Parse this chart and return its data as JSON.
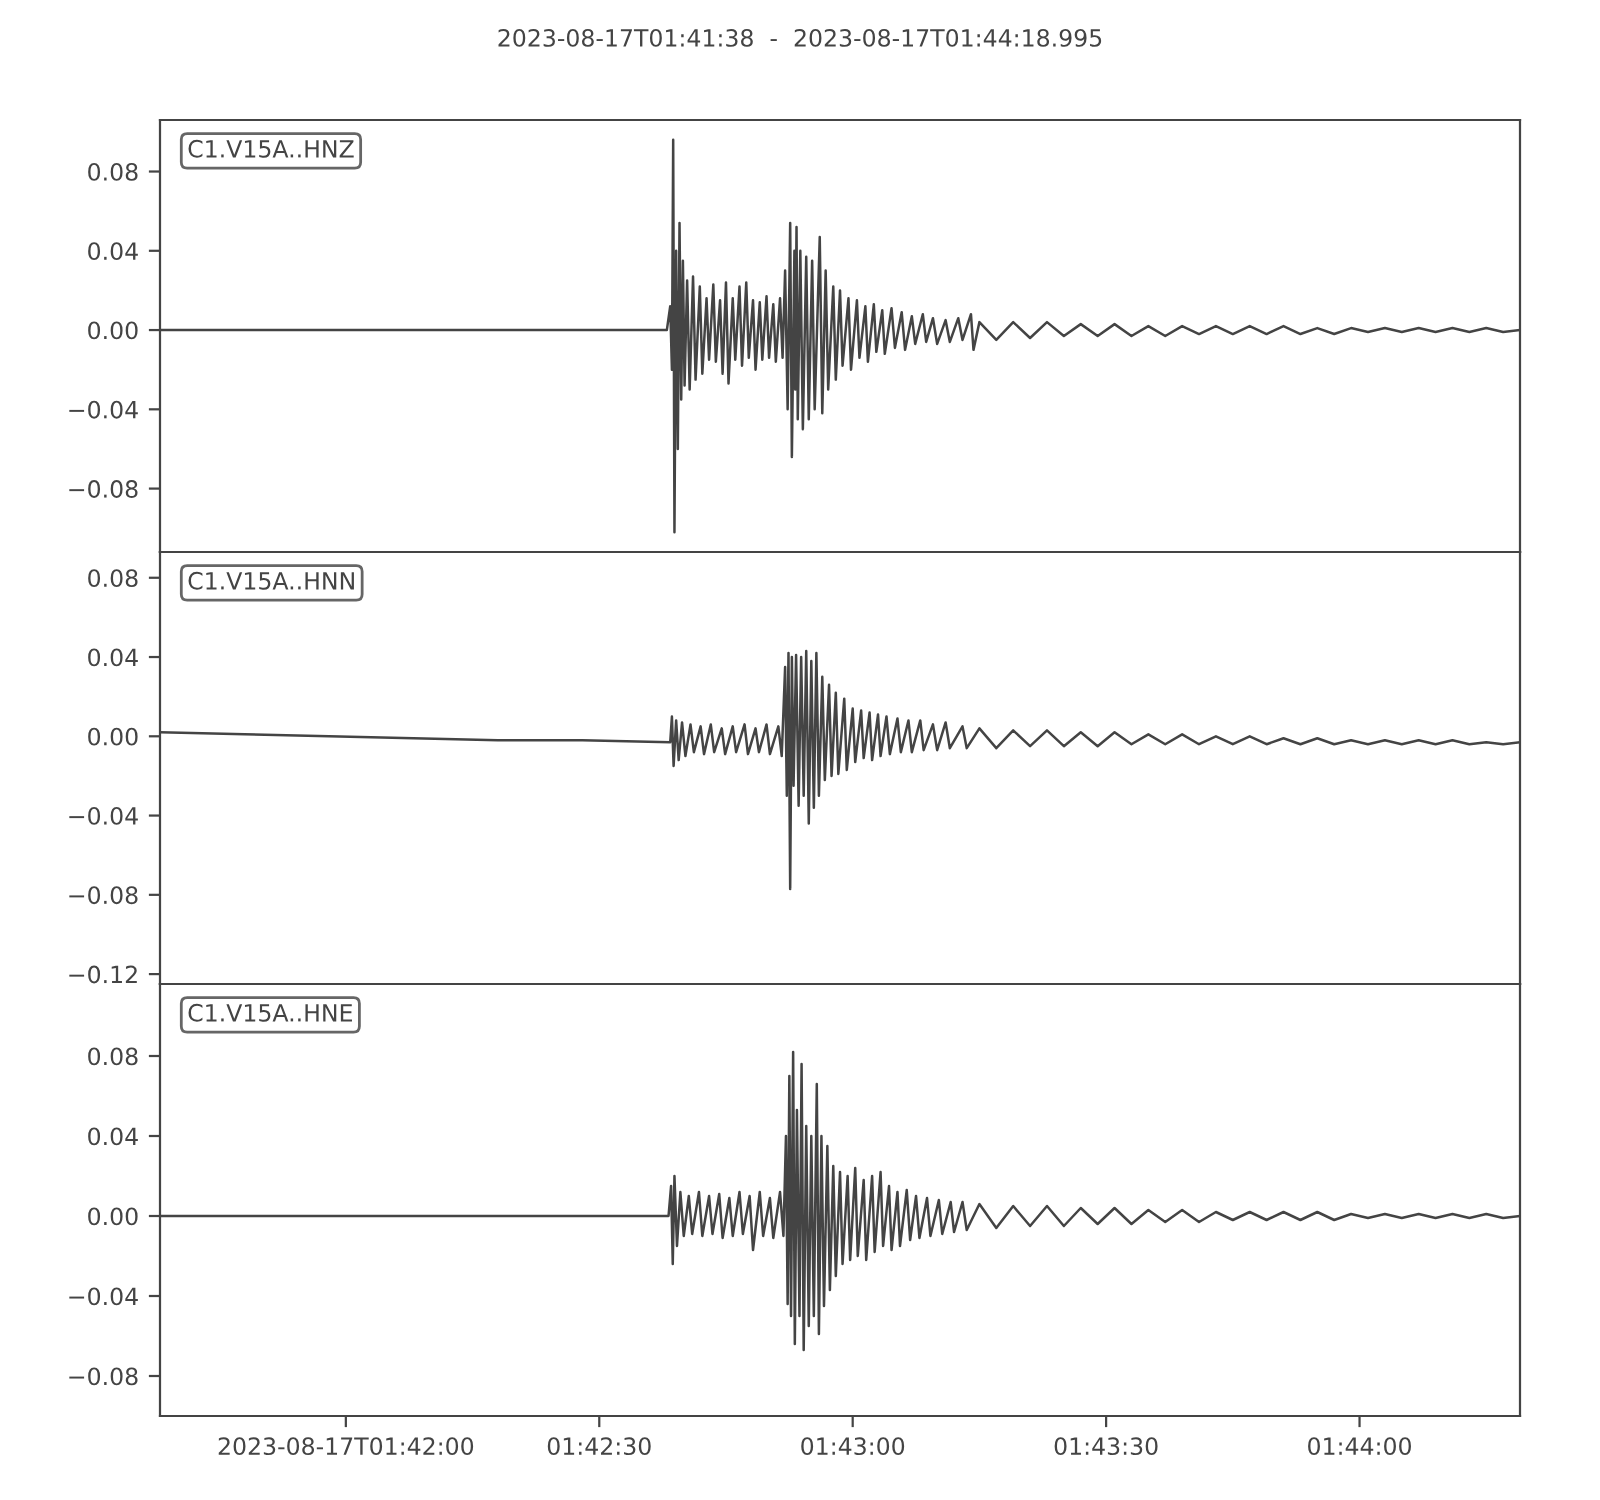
{
  "chart_data": [
    {
      "type": "line",
      "title": "2023-08-17T01:41:38  -  2023-08-17T01:44:18.995",
      "annotations": [
        "C1.V15A..HNZ"
      ],
      "x": [
        "2023-08-17T01:41:38",
        "2023-08-17T01:41:58",
        "2023-08-17T01:42:18",
        "2023-08-17T01:42:38",
        "2023-08-17T01:42:38.4",
        "2023-08-17T01:42:38.6",
        "2023-08-17T01:42:38.75",
        "2023-08-17T01:42:38.9",
        "2023-08-17T01:42:39.1",
        "2023-08-17T01:42:39.3",
        "2023-08-17T01:42:39.5",
        "2023-08-17T01:42:39.7",
        "2023-08-17T01:42:39.9",
        "2023-08-17T01:42:40.1",
        "2023-08-17T01:42:40.4",
        "2023-08-17T01:42:40.7",
        "2023-08-17T01:42:41.1",
        "2023-08-17T01:42:41.4",
        "2023-08-17T01:42:41.9",
        "2023-08-17T01:42:42.2",
        "2023-08-17T01:42:42.7",
        "2023-08-17T01:42:43",
        "2023-08-17T01:42:43.5",
        "2023-08-17T01:42:43.8",
        "2023-08-17T01:42:44.3",
        "2023-08-17T01:42:44.6",
        "2023-08-17T01:42:45",
        "2023-08-17T01:42:45.3",
        "2023-08-17T01:42:45.8",
        "2023-08-17T01:42:46.1",
        "2023-08-17T01:42:46.6",
        "2023-08-17T01:42:46.9",
        "2023-08-17T01:42:47.4",
        "2023-08-17T01:42:47.7",
        "2023-08-17T01:42:48.2",
        "2023-08-17T01:42:48.5",
        "2023-08-17T01:42:49",
        "2023-08-17T01:42:49.3",
        "2023-08-17T01:42:49.8",
        "2023-08-17T01:42:50.1",
        "2023-08-17T01:42:50.6",
        "2023-08-17T01:42:50.9",
        "2023-08-17T01:42:51.4",
        "2023-08-17T01:42:51.7",
        "2023-08-17T01:42:52",
        "2023-08-17T01:42:52.3",
        "2023-08-17T01:42:52.6",
        "2023-08-17T01:42:52.8",
        "2023-08-17T01:42:53.1",
        "2023-08-17T01:42:53.2",
        "2023-08-17T01:42:53.35",
        "2023-08-17T01:42:53.5",
        "2023-08-17T01:42:53.8",
        "2023-08-17T01:42:54.1",
        "2023-08-17T01:42:54.5",
        "2023-08-17T01:42:54.8",
        "2023-08-17T01:42:55.2",
        "2023-08-17T01:42:55.5",
        "2023-08-17T01:42:56.1",
        "2023-08-17T01:42:56.4",
        "2023-08-17T01:42:56.8",
        "2023-08-17T01:42:57.1",
        "2023-08-17T01:42:57.7",
        "2023-08-17T01:42:58",
        "2023-08-17T01:42:58.5",
        "2023-08-17T01:42:58.8",
        "2023-08-17T01:42:59.5",
        "2023-08-17T01:42:59.8",
        "2023-08-17T01:43:00.5",
        "2023-08-17T01:43:00.8",
        "2023-08-17T01:43:01.5",
        "2023-08-17T01:43:01.8",
        "2023-08-17T01:43:02.5",
        "2023-08-17T01:43:02.8",
        "2023-08-17T01:43:03.5",
        "2023-08-17T01:43:03.8",
        "2023-08-17T01:43:04.6",
        "2023-08-17T01:43:05",
        "2023-08-17T01:43:05.8",
        "2023-08-17T01:43:06.2",
        "2023-08-17T01:43:07",
        "2023-08-17T01:43:07.4",
        "2023-08-17T01:43:08.3",
        "2023-08-17T01:43:08.7",
        "2023-08-17T01:43:09.5",
        "2023-08-17T01:43:10",
        "2023-08-17T01:43:11",
        "2023-08-17T01:43:11.5",
        "2023-08-17T01:43:12.5",
        "2023-08-17T01:43:13",
        "2023-08-17T01:43:14",
        "2023-08-17T01:43:14.3",
        "2023-08-17T01:43:15",
        "2023-08-17T01:43:17",
        "2023-08-17T01:43:19",
        "2023-08-17T01:43:21",
        "2023-08-17T01:43:23",
        "2023-08-17T01:43:25",
        "2023-08-17T01:43:27",
        "2023-08-17T01:43:29",
        "2023-08-17T01:43:31",
        "2023-08-17T01:43:33",
        "2023-08-17T01:43:35",
        "2023-08-17T01:43:37",
        "2023-08-17T01:43:39",
        "2023-08-17T01:43:41",
        "2023-08-17T01:43:43",
        "2023-08-17T01:43:45",
        "2023-08-17T01:43:47",
        "2023-08-17T01:43:49",
        "2023-08-17T01:43:51",
        "2023-08-17T01:43:53",
        "2023-08-17T01:43:55",
        "2023-08-17T01:43:57",
        "2023-08-17T01:43:59",
        "2023-08-17T01:44:01",
        "2023-08-17T01:44:03",
        "2023-08-17T01:44:05",
        "2023-08-17T01:44:07",
        "2023-08-17T01:44:09",
        "2023-08-17T01:44:11",
        "2023-08-17T01:44:13",
        "2023-08-17T01:44:15",
        "2023-08-17T01:44:17",
        "2023-08-17T01:44:18.9"
      ],
      "series": [
        {
          "color": "#444444",
          "values": [
            0,
            0,
            0,
            0,
            0.012,
            -0.02,
            0.096,
            -0.102,
            0.04,
            -0.06,
            0.054,
            -0.035,
            0.035,
            -0.028,
            0.025,
            -0.03,
            0.027,
            -0.025,
            0.022,
            -0.022,
            0.016,
            -0.015,
            0.023,
            -0.016,
            0.015,
            -0.022,
            0.024,
            -0.027,
            0.016,
            -0.015,
            0.022,
            -0.018,
            0.024,
            -0.014,
            0.015,
            -0.02,
            0.014,
            -0.015,
            0.017,
            -0.014,
            0.013,
            -0.016,
            0.016,
            -0.014,
            0.03,
            -0.04,
            0.054,
            -0.064,
            0.04,
            -0.03,
            0.052,
            -0.045,
            0.04,
            -0.05,
            0.037,
            -0.045,
            0.035,
            -0.04,
            0.047,
            -0.042,
            0.03,
            -0.03,
            0.022,
            -0.025,
            0.02,
            -0.018,
            0.016,
            -0.02,
            0.015,
            -0.014,
            0.012,
            -0.016,
            0.013,
            -0.011,
            0.01,
            -0.012,
            0.011,
            -0.009,
            0.009,
            -0.01,
            0.007,
            -0.007,
            0.008,
            -0.006,
            0.006,
            -0.007,
            0.005,
            -0.006,
            0.006,
            -0.005,
            0.008,
            -0.01,
            0.004,
            -0.005,
            0.004,
            -0.004,
            0.004,
            -0.003,
            0.003,
            -0.003,
            0.003,
            -0.003,
            0.002,
            -0.003,
            0.002,
            -0.002,
            0.002,
            -0.002,
            0.002,
            -0.002,
            0.002,
            -0.002,
            0.001,
            -0.002,
            0.001,
            -0.001,
            0.001,
            -0.001,
            0.001,
            -0.001,
            0.001,
            -0.001,
            0.001,
            -0.001,
            0
          ]
        }
      ],
      "xlim": [
        "2023-08-17T01:41:38",
        "2023-08-17T01:44:18.995"
      ],
      "ylim": [
        -0.112,
        0.106
      ],
      "yticks": [
        {
          "value": 0.08,
          "label": "0.08"
        },
        {
          "value": 0.04,
          "label": "0.04"
        },
        {
          "value": 0,
          "label": "0.00"
        },
        {
          "value": -0.04,
          "label": "−0.04"
        },
        {
          "value": -0.08,
          "label": "−0.08"
        }
      ],
      "tick_labels": "y"
    },
    {
      "type": "line",
      "annotations": [
        "C1.V15A..HNN"
      ],
      "x": [
        "2023-08-17T01:41:38",
        "2023-08-17T01:41:48",
        "2023-08-17T01:41:58",
        "2023-08-17T01:42:08",
        "2023-08-17T01:42:18",
        "2023-08-17T01:42:28",
        "2023-08-17T01:42:38.4",
        "2023-08-17T01:42:38.6",
        "2023-08-17T01:42:38.8",
        "2023-08-17T01:42:39.1",
        "2023-08-17T01:42:39.4",
        "2023-08-17T01:42:39.8",
        "2023-08-17T01:42:40.2",
        "2023-08-17T01:42:40.8",
        "2023-08-17T01:42:41.2",
        "2023-08-17T01:42:42",
        "2023-08-17T01:42:42.4",
        "2023-08-17T01:42:43.2",
        "2023-08-17T01:42:43.6",
        "2023-08-17T01:42:44.5",
        "2023-08-17T01:42:44.9",
        "2023-08-17T01:42:45.8",
        "2023-08-17T01:42:46.2",
        "2023-08-17T01:42:47.2",
        "2023-08-17T01:42:47.6",
        "2023-08-17T01:42:48.5",
        "2023-08-17T01:42:48.9",
        "2023-08-17T01:42:49.8",
        "2023-08-17T01:42:50.2",
        "2023-08-17T01:42:51.2",
        "2023-08-17T01:42:51.6",
        "2023-08-17T01:42:52",
        "2023-08-17T01:42:52.2",
        "2023-08-17T01:42:52.4",
        "2023-08-17T01:42:52.6",
        "2023-08-17T01:42:52.8",
        "2023-08-17T01:42:53",
        "2023-08-17T01:42:53.3",
        "2023-08-17T01:42:53.6",
        "2023-08-17T01:42:53.9",
        "2023-08-17T01:42:54.2",
        "2023-08-17T01:42:54.5",
        "2023-08-17T01:42:54.8",
        "2023-08-17T01:42:55.1",
        "2023-08-17T01:42:55.4",
        "2023-08-17T01:42:55.7",
        "2023-08-17T01:42:56",
        "2023-08-17T01:42:56.4",
        "2023-08-17T01:42:56.7",
        "2023-08-17T01:42:57.2",
        "2023-08-17T01:42:57.5",
        "2023-08-17T01:42:58",
        "2023-08-17T01:42:58.3",
        "2023-08-17T01:42:59",
        "2023-08-17T01:42:59.3",
        "2023-08-17T01:43:00",
        "2023-08-17T01:43:00.3",
        "2023-08-17T01:43:01",
        "2023-08-17T01:43:01.3",
        "2023-08-17T01:43:02",
        "2023-08-17T01:43:02.3",
        "2023-08-17T01:43:03",
        "2023-08-17T01:43:03.3",
        "2023-08-17T01:43:04",
        "2023-08-17T01:43:04.4",
        "2023-08-17T01:43:05.3",
        "2023-08-17T01:43:05.7",
        "2023-08-17T01:43:06.6",
        "2023-08-17T01:43:07",
        "2023-08-17T01:43:08",
        "2023-08-17T01:43:08.4",
        "2023-08-17T01:43:09.5",
        "2023-08-17T01:43:10",
        "2023-08-17T01:43:11",
        "2023-08-17T01:43:11.5",
        "2023-08-17T01:43:13",
        "2023-08-17T01:43:13.5",
        "2023-08-17T01:43:15",
        "2023-08-17T01:43:17",
        "2023-08-17T01:43:19",
        "2023-08-17T01:43:21",
        "2023-08-17T01:43:23",
        "2023-08-17T01:43:25",
        "2023-08-17T01:43:27",
        "2023-08-17T01:43:29",
        "2023-08-17T01:43:31",
        "2023-08-17T01:43:33",
        "2023-08-17T01:43:35",
        "2023-08-17T01:43:37",
        "2023-08-17T01:43:39",
        "2023-08-17T01:43:41",
        "2023-08-17T01:43:43",
        "2023-08-17T01:43:45",
        "2023-08-17T01:43:47",
        "2023-08-17T01:43:49",
        "2023-08-17T01:43:51",
        "2023-08-17T01:43:53",
        "2023-08-17T01:43:55",
        "2023-08-17T01:43:57",
        "2023-08-17T01:43:59",
        "2023-08-17T01:44:01",
        "2023-08-17T01:44:03",
        "2023-08-17T01:44:05",
        "2023-08-17T01:44:07",
        "2023-08-17T01:44:09",
        "2023-08-17T01:44:11",
        "2023-08-17T01:44:13",
        "2023-08-17T01:44:15",
        "2023-08-17T01:44:17",
        "2023-08-17T01:44:18.9"
      ],
      "series": [
        {
          "color": "#444444",
          "values": [
            0.002,
            0.001,
            0,
            -0.001,
            -0.002,
            -0.002,
            -0.003,
            0.01,
            -0.015,
            0.008,
            -0.012,
            0.007,
            -0.01,
            0.006,
            -0.008,
            0.005,
            -0.009,
            0.006,
            -0.008,
            0.004,
            -0.009,
            0.005,
            -0.008,
            0.006,
            -0.009,
            0.004,
            -0.008,
            0.006,
            -0.009,
            0.005,
            -0.01,
            0.035,
            -0.03,
            0.042,
            -0.077,
            0.04,
            -0.025,
            0.041,
            -0.035,
            0.04,
            -0.03,
            0.043,
            -0.044,
            0.038,
            -0.036,
            0.042,
            -0.03,
            0.03,
            -0.022,
            0.026,
            -0.02,
            0.022,
            -0.019,
            0.019,
            -0.017,
            0.014,
            -0.013,
            0.013,
            -0.011,
            0.012,
            -0.012,
            0.011,
            -0.01,
            0.01,
            -0.009,
            0.009,
            -0.008,
            0.008,
            -0.008,
            0.008,
            -0.007,
            0.006,
            -0.007,
            0.007,
            -0.006,
            0.005,
            -0.006,
            0.004,
            -0.006,
            0.003,
            -0.005,
            0.003,
            -0.005,
            0.002,
            -0.005,
            0.002,
            -0.004,
            0.001,
            -0.004,
            0.001,
            -0.004,
            0,
            -0.004,
            0,
            -0.004,
            -0.001,
            -0.004,
            -0.001,
            -0.004,
            -0.002,
            -0.004,
            -0.002,
            -0.004,
            -0.002,
            -0.004,
            -0.002,
            -0.004,
            -0.003,
            -0.004,
            -0.003
          ]
        }
      ],
      "xlim": [
        "2023-08-17T01:41:38",
        "2023-08-17T01:44:18.995"
      ],
      "ylim": [
        -0.125,
        0.093
      ],
      "yticks": [
        {
          "value": 0.08,
          "label": "0.08"
        },
        {
          "value": 0.04,
          "label": "0.04"
        },
        {
          "value": 0,
          "label": "0.00"
        },
        {
          "value": -0.04,
          "label": "−0.04"
        },
        {
          "value": -0.08,
          "label": "−0.08"
        },
        {
          "value": -0.12,
          "label": "−0.12"
        }
      ],
      "tick_labels": "y"
    },
    {
      "type": "line",
      "annotations": [
        "C1.V15A..HNE"
      ],
      "x": [
        "2023-08-17T01:41:38",
        "2023-08-17T01:42:08",
        "2023-08-17T01:42:38.2",
        "2023-08-17T01:42:38.5",
        "2023-08-17T01:42:38.7",
        "2023-08-17T01:42:38.9",
        "2023-08-17T01:42:39.2",
        "2023-08-17T01:42:39.6",
        "2023-08-17T01:42:40",
        "2023-08-17T01:42:40.6",
        "2023-08-17T01:42:41",
        "2023-08-17T01:42:41.8",
        "2023-08-17T01:42:42.2",
        "2023-08-17T01:42:43",
        "2023-08-17T01:42:43.4",
        "2023-08-17T01:42:44.2",
        "2023-08-17T01:42:44.6",
        "2023-08-17T01:42:45.4",
        "2023-08-17T01:42:45.8",
        "2023-08-17T01:42:46.6",
        "2023-08-17T01:42:47",
        "2023-08-17T01:42:47.8",
        "2023-08-17T01:42:48.2",
        "2023-08-17T01:42:49",
        "2023-08-17T01:42:49.4",
        "2023-08-17T01:42:50.2",
        "2023-08-17T01:42:50.6",
        "2023-08-17T01:42:51.4",
        "2023-08-17T01:42:51.8",
        "2023-08-17T01:42:52.1",
        "2023-08-17T01:42:52.3",
        "2023-08-17T01:42:52.5",
        "2023-08-17T01:42:52.7",
        "2023-08-17T01:42:52.95",
        "2023-08-17T01:42:53.15",
        "2023-08-17T01:42:53.4",
        "2023-08-17T01:42:53.7",
        "2023-08-17T01:42:53.95",
        "2023-08-17T01:42:54.2",
        "2023-08-17T01:42:54.5",
        "2023-08-17T01:42:54.8",
        "2023-08-17T01:42:55.1",
        "2023-08-17T01:42:55.4",
        "2023-08-17T01:42:55.75",
        "2023-08-17T01:42:56",
        "2023-08-17T01:42:56.3",
        "2023-08-17T01:42:56.6",
        "2023-08-17T01:42:57",
        "2023-08-17T01:42:57.3",
        "2023-08-17T01:42:57.7",
        "2023-08-17T01:42:58",
        "2023-08-17T01:42:58.5",
        "2023-08-17T01:42:58.8",
        "2023-08-17T01:42:59.4",
        "2023-08-17T01:42:59.7",
        "2023-08-17T01:43:00.3",
        "2023-08-17T01:43:00.6",
        "2023-08-17T01:43:01.3",
        "2023-08-17T01:43:01.6",
        "2023-08-17T01:43:02.3",
        "2023-08-17T01:43:02.6",
        "2023-08-17T01:43:03.3",
        "2023-08-17T01:43:03.6",
        "2023-08-17T01:43:04.3",
        "2023-08-17T01:43:04.6",
        "2023-08-17T01:43:05.3",
        "2023-08-17T01:43:05.6",
        "2023-08-17T01:43:06.4",
        "2023-08-17T01:43:06.8",
        "2023-08-17T01:43:07.5",
        "2023-08-17T01:43:07.9",
        "2023-08-17T01:43:08.8",
        "2023-08-17T01:43:09.2",
        "2023-08-17T01:43:10.2",
        "2023-08-17T01:43:10.6",
        "2023-08-17T01:43:11.6",
        "2023-08-17T01:43:12",
        "2023-08-17T01:43:13",
        "2023-08-17T01:43:13.5",
        "2023-08-17T01:43:15",
        "2023-08-17T01:43:17",
        "2023-08-17T01:43:19",
        "2023-08-17T01:43:21",
        "2023-08-17T01:43:23",
        "2023-08-17T01:43:25",
        "2023-08-17T01:43:27",
        "2023-08-17T01:43:29",
        "2023-08-17T01:43:31",
        "2023-08-17T01:43:33",
        "2023-08-17T01:43:35",
        "2023-08-17T01:43:37",
        "2023-08-17T01:43:39",
        "2023-08-17T01:43:41",
        "2023-08-17T01:43:43",
        "2023-08-17T01:43:45",
        "2023-08-17T01:43:47",
        "2023-08-17T01:43:49",
        "2023-08-17T01:43:51",
        "2023-08-17T01:43:53",
        "2023-08-17T01:43:55",
        "2023-08-17T01:43:57",
        "2023-08-17T01:43:59",
        "2023-08-17T01:44:01",
        "2023-08-17T01:44:03",
        "2023-08-17T01:44:05",
        "2023-08-17T01:44:07",
        "2023-08-17T01:44:09",
        "2023-08-17T01:44:11",
        "2023-08-17T01:44:13",
        "2023-08-17T01:44:15",
        "2023-08-17T01:44:17",
        "2023-08-17T01:44:18.9"
      ],
      "series": [
        {
          "color": "#444444",
          "values": [
            0,
            0,
            0,
            0.015,
            -0.024,
            0.02,
            -0.015,
            0.012,
            -0.01,
            0.01,
            -0.009,
            0.012,
            -0.01,
            0.01,
            -0.009,
            0.011,
            -0.011,
            0.009,
            -0.01,
            0.012,
            -0.009,
            0.01,
            -0.017,
            0.012,
            -0.01,
            0.009,
            -0.011,
            0.012,
            -0.01,
            0.04,
            -0.044,
            0.07,
            -0.05,
            0.082,
            -0.064,
            0.053,
            -0.05,
            0.076,
            -0.067,
            0.045,
            -0.055,
            0.04,
            -0.05,
            0.066,
            -0.059,
            0.04,
            -0.045,
            0.035,
            -0.037,
            0.025,
            -0.03,
            0.022,
            -0.024,
            0.02,
            -0.022,
            0.024,
            -0.02,
            0.018,
            -0.022,
            0.02,
            -0.018,
            0.022,
            -0.015,
            0.015,
            -0.017,
            0.012,
            -0.015,
            0.013,
            -0.012,
            0.01,
            -0.011,
            0.009,
            -0.01,
            0.008,
            -0.009,
            0.007,
            -0.008,
            0.007,
            -0.007,
            0.006,
            -0.006,
            0.005,
            -0.005,
            0.005,
            -0.005,
            0.004,
            -0.004,
            0.004,
            -0.004,
            0.003,
            -0.003,
            0.003,
            -0.003,
            0.002,
            -0.002,
            0.002,
            -0.002,
            0.002,
            -0.002,
            0.002,
            -0.002,
            0.001,
            -0.001,
            0.001,
            -0.001,
            0.001,
            -0.001,
            0.001,
            -0.001,
            0.001,
            -0.001,
            0
          ]
        }
      ],
      "xlim": [
        "2023-08-17T01:41:38",
        "2023-08-17T01:44:18.995"
      ],
      "xticks": [
        {
          "value": "2023-08-17T01:42:00",
          "label": "2023-08-17T01:42:00"
        },
        {
          "value": "2023-08-17T01:42:30",
          "label": "01:42:30"
        },
        {
          "value": "2023-08-17T01:43:00",
          "label": "01:43:00"
        },
        {
          "value": "2023-08-17T01:43:30",
          "label": "01:43:30"
        },
        {
          "value": "2023-08-17T01:44:00",
          "label": "01:44:00"
        }
      ],
      "ylim": [
        -0.1,
        0.116
      ],
      "yticks": [
        {
          "value": 0.08,
          "label": "0.08"
        },
        {
          "value": 0.04,
          "label": "0.04"
        },
        {
          "value": 0,
          "label": "0.00"
        },
        {
          "value": -0.04,
          "label": "−0.04"
        },
        {
          "value": -0.08,
          "label": "−0.08"
        }
      ]
    }
  ]
}
